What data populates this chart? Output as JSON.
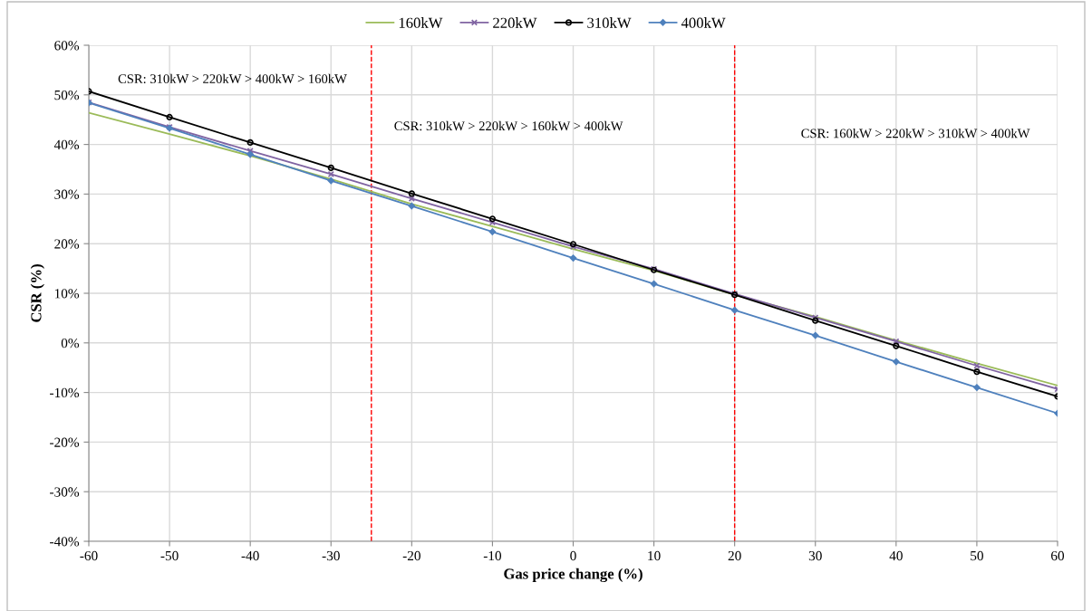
{
  "chart_data": {
    "type": "line",
    "xlabel": "Gas price change (%)",
    "ylabel": "CSR (%)",
    "x": [
      -60,
      -50,
      -40,
      -30,
      -20,
      -10,
      0,
      10,
      20,
      30,
      40,
      50,
      60
    ],
    "series": [
      {
        "name": "160kW",
        "color": "#9bbb59",
        "marker": "none",
        "values": [
          46.4,
          42.1,
          37.7,
          33.0,
          28.0,
          23.5,
          18.9,
          14.6,
          9.7,
          5.3,
          0.5,
          -4.1,
          -8.6
        ]
      },
      {
        "name": "220kW",
        "color": "#8064a2",
        "marker": "cross",
        "values": [
          48.5,
          43.5,
          38.7,
          34.0,
          29.1,
          24.3,
          19.4,
          14.9,
          9.9,
          5.1,
          0.3,
          -4.6,
          -9.3
        ]
      },
      {
        "name": "310kW",
        "color": "#000000",
        "marker": "circle",
        "values": [
          50.7,
          45.5,
          40.4,
          35.3,
          30.1,
          25.0,
          19.9,
          14.7,
          9.7,
          4.5,
          -0.6,
          -5.8,
          -10.8
        ]
      },
      {
        "name": "400kW",
        "color": "#4f81bd",
        "marker": "diamond",
        "values": [
          48.4,
          43.3,
          38.0,
          32.7,
          27.6,
          22.4,
          17.1,
          11.9,
          6.6,
          1.5,
          -3.8,
          -9.0,
          -14.2
        ]
      }
    ],
    "xlim": [
      -60,
      60
    ],
    "xticks": [
      -60,
      -50,
      -40,
      -30,
      -20,
      -10,
      0,
      10,
      20,
      30,
      40,
      50,
      60
    ],
    "ylim": [
      -40,
      60
    ],
    "yticks": [
      {
        "value": -40,
        "label": "-40%"
      },
      {
        "value": -30,
        "label": "-30%"
      },
      {
        "value": -20,
        "label": "-20%"
      },
      {
        "value": -10,
        "label": "-10%"
      },
      {
        "value": 0,
        "label": "0%"
      },
      {
        "value": 10,
        "label": "10%"
      },
      {
        "value": 20,
        "label": "20%"
      },
      {
        "value": 30,
        "label": "30%"
      },
      {
        "value": 40,
        "label": "40%"
      },
      {
        "value": 50,
        "label": "50%"
      },
      {
        "value": 60,
        "label": "60%"
      }
    ],
    "ref_lines": [
      {
        "axis": "x",
        "value": -25,
        "color": "#ff0000",
        "line_style": "dashed"
      },
      {
        "axis": "x",
        "value": 20,
        "color": "#ff0000",
        "line_style": "dashed"
      }
    ],
    "annotations": [
      "CSR: 310kW > 220kW > 400kW > 160kW",
      "CSR: 310kW > 220kW > 160kW > 400kW",
      "CSR: 160kW > 220kW > 310kW > 400kW"
    ],
    "grid": true,
    "legend": "top",
    "line_style": "solid"
  }
}
